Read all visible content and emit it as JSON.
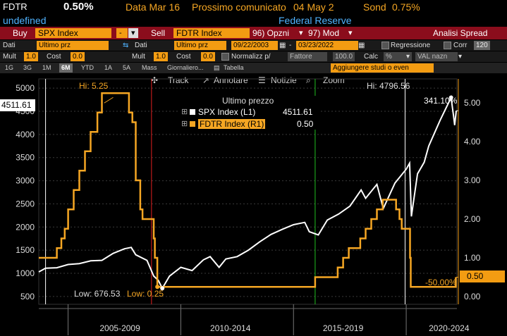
{
  "header": {
    "ticker": "FDTR",
    "last": "0.50%",
    "date": "Data Mar 16",
    "next_label": "Prossimo comunicato",
    "next_date": "04 May 2",
    "prev_label": "Sond",
    "prev_value": "0.75%",
    "sub_left": "undefined",
    "sub_right": "Federal Reserve"
  },
  "toolbar": {
    "buy_label": "Buy",
    "buy_security": "SPX Index",
    "minus": "-",
    "sell_label": "Sell",
    "sell_security": "FDTR Index",
    "options": "96) Opzni",
    "mod": "97) Mod",
    "analysis": "Analisi Spread"
  },
  "settings_row1": {
    "data_label": "Dati",
    "data_value": "Ultimo prz",
    "data2_label": "Dati",
    "data2_value": "Ultimo prz",
    "start": "09/22/2003",
    "sep": "-",
    "end": "03/23/2022",
    "regression": "Regressione",
    "corr_label": "Corr",
    "corr_value": "120"
  },
  "settings_row2": {
    "mult_label": "Mult",
    "mult_value": "1.0",
    "cost_label": "Cost",
    "cost_value": "0.0",
    "mult2_label": "Mult",
    "mult2_value": "1.0",
    "cost2_label": "Cost",
    "cost2_value": "0.0",
    "normalize": "Normalizz p/",
    "factor": "Fattore",
    "factor_value": "100.0",
    "calc_label": "Calc",
    "calc_value": "%",
    "val": "VAL nazn"
  },
  "periods": [
    "1G",
    "3G",
    "1M",
    "6M",
    "YTD",
    "1A",
    "5A",
    "Mass",
    "Giornaliero...",
    "Tabella"
  ],
  "selected_period": "6M",
  "studies_placeholder": "Aggiungere studi o even",
  "chart_tools": {
    "track": "Track",
    "annotate": "Annotare",
    "news": "Notizie",
    "zoom": "Zoom"
  },
  "legend": {
    "title": "Ultimo prezzo",
    "items": [
      {
        "name": "SPX Index  (L1)",
        "value": "4511.61",
        "color": "#ffffff"
      },
      {
        "name": "FDTR Index  (R1)",
        "value": "0.50",
        "color": "#f5a623"
      }
    ]
  },
  "annotations": {
    "hi_fdtr": "Hi: 5.25",
    "hi_spx": "Hi: 4796.56",
    "low_spx": "Low: 676.53",
    "low_fdtr": "Low: 0.25",
    "pct_spx": "341.10%",
    "pct_fdtr": "-50.00%",
    "last_spx": "4511.61",
    "last_fdtr": "0.50"
  },
  "colors": {
    "spx": "#ffffff",
    "fdtr": "#f5a623",
    "amber": "#f39c12",
    "marker_white": "#ffffff",
    "marker_red": "#e02020",
    "marker_green": "#1fbf1f"
  },
  "chart_data": {
    "type": "line",
    "x_labels": [
      "2005-2009",
      "2010-2014",
      "2015-2019",
      "2020-2024"
    ],
    "y_left": {
      "ticks": [
        500,
        1000,
        1500,
        2000,
        2500,
        3000,
        3500,
        4000,
        4500,
        5000
      ],
      "range": [
        300,
        5200
      ]
    },
    "y_right": {
      "ticks": [
        "0.00",
        "1.00",
        "2.00",
        "3.00",
        "4.00",
        "5.00"
      ],
      "range": [
        -0.1,
        5.6
      ]
    },
    "series": [
      {
        "name": "SPX Index  (L1)",
        "axis": "left",
        "points": [
          [
            2003.7,
            1030
          ],
          [
            2004.0,
            1110
          ],
          [
            2004.5,
            1120
          ],
          [
            2005.0,
            1190
          ],
          [
            2005.5,
            1210
          ],
          [
            2006.0,
            1270
          ],
          [
            2006.5,
            1280
          ],
          [
            2007.0,
            1430
          ],
          [
            2007.5,
            1530
          ],
          [
            2007.8,
            1560
          ],
          [
            2008.0,
            1400
          ],
          [
            2008.5,
            1280
          ],
          [
            2008.8,
            940
          ],
          [
            2009.0,
            850
          ],
          [
            2009.18,
            676.53
          ],
          [
            2009.5,
            940
          ],
          [
            2010.0,
            1130
          ],
          [
            2010.5,
            1060
          ],
          [
            2011.0,
            1290
          ],
          [
            2011.3,
            1360
          ],
          [
            2011.7,
            1130
          ],
          [
            2012.0,
            1310
          ],
          [
            2012.5,
            1360
          ],
          [
            2013.0,
            1500
          ],
          [
            2013.5,
            1680
          ],
          [
            2014.0,
            1840
          ],
          [
            2014.5,
            1950
          ],
          [
            2015.0,
            2050
          ],
          [
            2015.5,
            2100
          ],
          [
            2015.7,
            1900
          ],
          [
            2016.1,
            1830
          ],
          [
            2016.5,
            2150
          ],
          [
            2017.0,
            2280
          ],
          [
            2017.5,
            2450
          ],
          [
            2018.0,
            2800
          ],
          [
            2018.2,
            2620
          ],
          [
            2018.7,
            2920
          ],
          [
            2018.98,
            2400
          ],
          [
            2019.5,
            2950
          ],
          [
            2020.0,
            3250
          ],
          [
            2020.15,
            3380
          ],
          [
            2020.23,
            2230
          ],
          [
            2020.5,
            3150
          ],
          [
            2020.8,
            3400
          ],
          [
            2021.0,
            3750
          ],
          [
            2021.5,
            4300
          ],
          [
            2021.99,
            4796.56
          ],
          [
            2022.1,
            4400
          ],
          [
            2022.15,
            4200
          ],
          [
            2022.22,
            4511.61
          ]
        ]
      },
      {
        "name": "FDTR Index  (R1)",
        "axis": "right",
        "points": [
          [
            2003.7,
            1.0
          ],
          [
            2004.5,
            1.0
          ],
          [
            2004.5,
            1.25
          ],
          [
            2004.7,
            1.5
          ],
          [
            2004.85,
            1.75
          ],
          [
            2005.0,
            2.25
          ],
          [
            2005.25,
            2.75
          ],
          [
            2005.5,
            3.25
          ],
          [
            2005.75,
            3.75
          ],
          [
            2006.0,
            4.25
          ],
          [
            2006.3,
            4.75
          ],
          [
            2006.5,
            5.25
          ],
          [
            2007.7,
            5.25
          ],
          [
            2007.7,
            4.75
          ],
          [
            2007.85,
            4.5
          ],
          [
            2008.0,
            3.0
          ],
          [
            2008.2,
            2.25
          ],
          [
            2008.3,
            2.0
          ],
          [
            2008.8,
            1.5
          ],
          [
            2008.85,
            1.0
          ],
          [
            2008.96,
            0.25
          ],
          [
            2015.96,
            0.25
          ],
          [
            2015.96,
            0.5
          ],
          [
            2016.96,
            0.75
          ],
          [
            2017.2,
            1.0
          ],
          [
            2017.45,
            1.25
          ],
          [
            2017.96,
            1.5
          ],
          [
            2018.2,
            1.75
          ],
          [
            2018.45,
            2.0
          ],
          [
            2018.7,
            2.25
          ],
          [
            2018.96,
            2.5
          ],
          [
            2019.55,
            2.25
          ],
          [
            2019.7,
            2.0
          ],
          [
            2019.8,
            1.75
          ],
          [
            2020.17,
            1.0
          ],
          [
            2020.2,
            0.25
          ],
          [
            2022.2,
            0.25
          ],
          [
            2022.2,
            0.5
          ]
        ]
      }
    ],
    "markers": [
      {
        "x": 2004.0,
        "color": "white"
      },
      {
        "x": 2008.7,
        "color": "red"
      },
      {
        "x": 2015.96,
        "color": "green"
      },
      {
        "x": 2019.95,
        "color": "white"
      }
    ]
  }
}
